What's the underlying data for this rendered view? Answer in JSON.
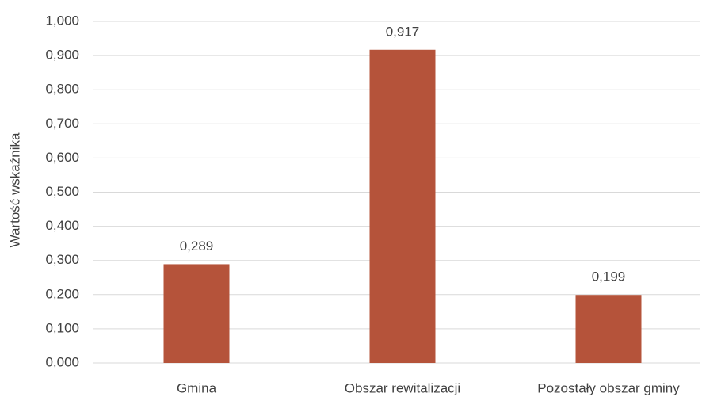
{
  "chart_data": {
    "type": "bar",
    "y_axis_label": "Wartość wskaźnika",
    "categories": [
      "Gmina",
      "Obszar rewitalizacji",
      "Pozostały obszar gminy"
    ],
    "values": [
      0.289,
      0.917,
      0.199
    ],
    "value_labels": [
      "0,289",
      "0,917",
      "0,199"
    ],
    "color": "#b5533a",
    "ylim": [
      0,
      1
    ],
    "yticks": [
      {
        "value": 0,
        "label": "0,000"
      },
      {
        "value": 0.1,
        "label": "0,100"
      },
      {
        "value": 0.2,
        "label": "0,200"
      },
      {
        "value": 0.3,
        "label": "0,300"
      },
      {
        "value": 0.4,
        "label": "0,400"
      },
      {
        "value": 0.5,
        "label": "0,500"
      },
      {
        "value": 0.6,
        "label": "0,600"
      },
      {
        "value": 0.7,
        "label": "0,700"
      },
      {
        "value": 0.8,
        "label": "0,800"
      },
      {
        "value": 0.9,
        "label": "0,900"
      },
      {
        "value": 1,
        "label": "1,000"
      }
    ],
    "grid": true
  }
}
